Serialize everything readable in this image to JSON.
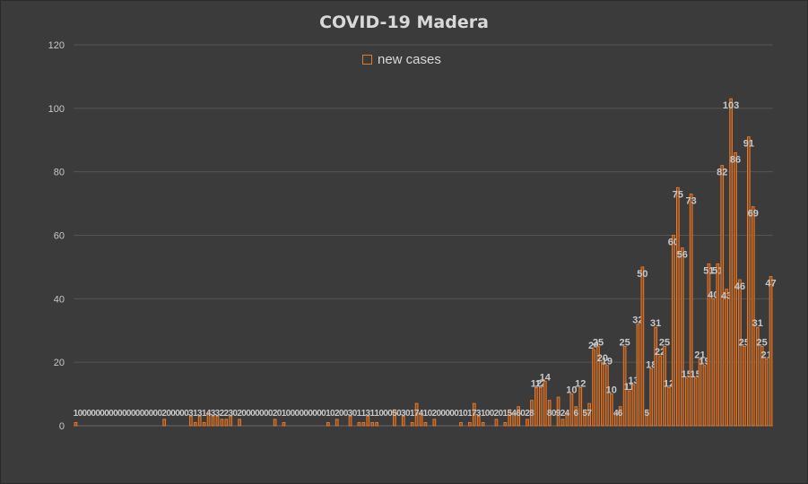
{
  "chart_data": {
    "type": "bar",
    "title": "COVID-19 Madera",
    "legend": "new cases",
    "legend_position": "top",
    "ylim": [
      0,
      120
    ],
    "yticks": [
      0,
      20,
      40,
      60,
      80,
      100,
      120
    ],
    "grid": true,
    "colors": {
      "stroke": "#e07a2f",
      "fill": "#8a4a1f",
      "label": "#c8c8c8"
    },
    "series": [
      {
        "values": [
          1,
          0,
          0,
          0,
          0,
          0,
          0,
          0,
          0,
          0,
          0,
          0,
          0,
          0,
          0,
          0,
          0,
          0,
          0,
          0,
          2,
          0,
          0,
          0,
          0,
          0,
          3,
          1,
          3,
          1,
          4,
          3,
          3,
          2,
          2,
          3,
          0,
          2,
          0,
          0,
          0,
          0,
          0,
          0,
          0,
          2,
          0,
          1,
          0,
          0,
          0,
          0,
          0,
          0,
          0,
          0,
          0,
          1,
          0,
          2,
          0,
          0,
          3,
          0,
          1,
          1,
          3,
          1,
          1,
          0,
          0,
          0,
          5,
          0,
          3,
          0,
          1,
          7,
          4,
          1,
          0,
          2,
          0,
          0,
          0,
          0,
          0,
          1,
          0,
          1,
          7,
          3,
          1,
          0,
          0,
          2,
          0,
          1,
          5,
          4,
          6,
          0,
          2,
          8,
          12,
          12,
          14,
          8,
          0,
          9,
          2,
          4,
          10,
          6,
          12,
          5,
          7,
          24,
          25,
          20,
          19,
          10,
          4,
          6,
          25,
          11,
          13,
          32,
          50,
          5,
          18,
          31,
          22,
          25,
          12,
          60,
          75,
          56,
          15,
          73,
          15,
          21,
          19,
          51,
          40,
          51,
          82,
          43,
          103,
          86,
          46,
          25,
          91,
          69,
          31,
          25,
          21,
          47
        ]
      }
    ]
  }
}
